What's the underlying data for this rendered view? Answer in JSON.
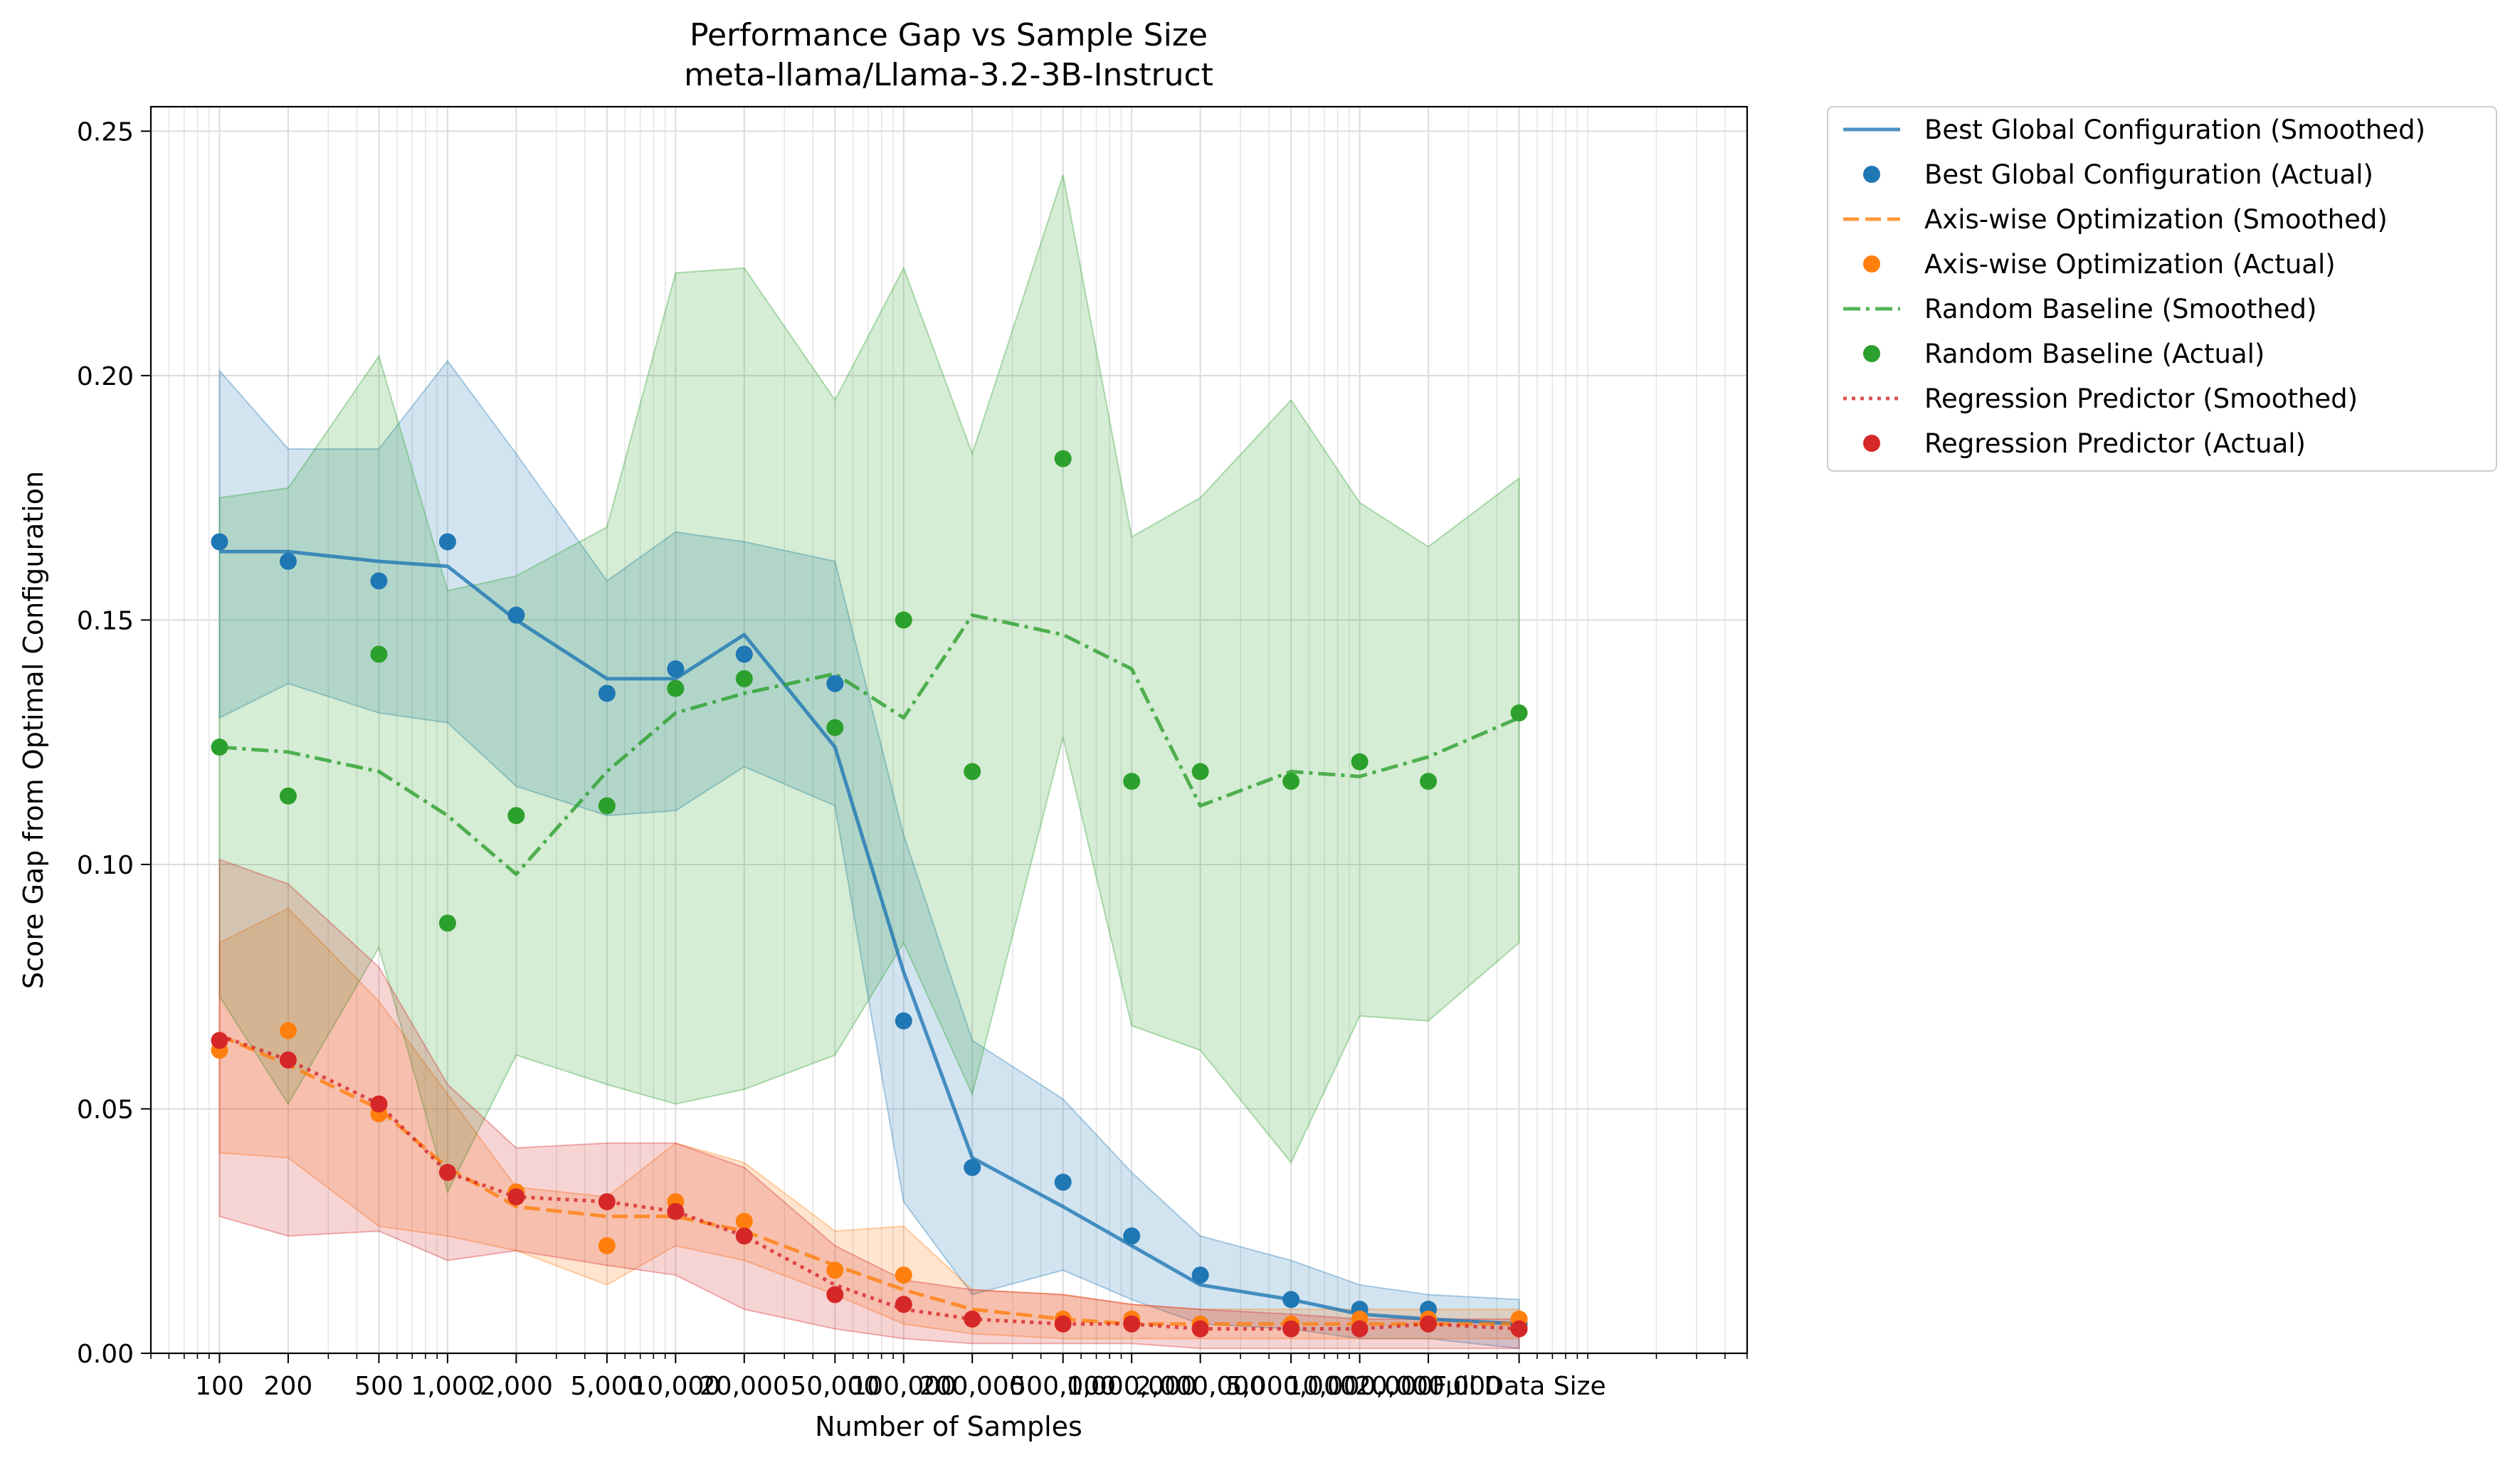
{
  "chart_data": {
    "type": "line",
    "title": "Performance Gap vs Sample Size",
    "subtitle": "meta-llama/Llama-3.2-3B-Instruct",
    "xlabel": "Number of Samples",
    "ylabel": "Score Gap from Optimal Configuration",
    "x_scale": "log",
    "ylim": [
      0.0,
      0.255
    ],
    "grid": true,
    "legend_placement": "outside-top-right",
    "categories": [
      "100",
      "200",
      "500",
      "1,000",
      "2,000",
      "5,000",
      "10,000",
      "20,000",
      "50,000",
      "100,000",
      "200,000",
      "500,000",
      "1,000,000",
      "2,000,000",
      "5,000,000",
      "10,000,000",
      "20,000,000",
      "Full Data Size"
    ],
    "y_ticks": [
      "0.00",
      "0.05",
      "0.10",
      "0.15",
      "0.20",
      "0.25"
    ],
    "series": [
      {
        "name": "Best Global Configuration",
        "smoothed_label": "Best Global Configuration (Smoothed)",
        "actual_label": "Best Global Configuration (Actual)",
        "color": "#1f77b4",
        "line_style": "solid",
        "smoothed": [
          0.164,
          0.164,
          0.162,
          0.161,
          0.15,
          0.138,
          0.138,
          0.147,
          0.124,
          0.078,
          0.04,
          0.03,
          0.022,
          0.014,
          0.011,
          0.008,
          0.007,
          0.006
        ],
        "actual": [
          0.166,
          0.162,
          0.158,
          0.166,
          0.151,
          0.135,
          0.14,
          0.143,
          0.137,
          0.068,
          0.038,
          0.035,
          0.024,
          0.016,
          0.011,
          0.009,
          0.009,
          0.006
        ],
        "band_upper": [
          0.201,
          0.185,
          0.185,
          0.203,
          0.184,
          0.158,
          0.168,
          0.166,
          0.162,
          0.106,
          0.064,
          0.052,
          0.037,
          0.024,
          0.019,
          0.014,
          0.012,
          0.011
        ],
        "band_lower": [
          0.13,
          0.137,
          0.131,
          0.129,
          0.116,
          0.11,
          0.111,
          0.12,
          0.112,
          0.031,
          0.012,
          0.017,
          0.011,
          0.006,
          0.005,
          0.003,
          0.003,
          0.001
        ]
      },
      {
        "name": "Axis-wise Optimization",
        "smoothed_label": "Axis-wise Optimization (Smoothed)",
        "actual_label": "Axis-wise Optimization (Actual)",
        "color": "#ff7f0e",
        "line_style": "dashed",
        "smoothed": [
          0.065,
          0.059,
          0.05,
          0.038,
          0.03,
          0.028,
          0.028,
          0.025,
          0.018,
          0.013,
          0.009,
          0.007,
          0.006,
          0.006,
          0.006,
          0.006,
          0.006,
          0.006
        ],
        "actual": [
          0.062,
          0.066,
          0.049,
          0.037,
          0.033,
          0.022,
          0.031,
          0.027,
          0.017,
          0.016,
          0.007,
          0.007,
          0.007,
          0.006,
          0.006,
          0.007,
          0.007,
          0.007
        ],
        "band_upper": [
          0.084,
          0.091,
          0.072,
          0.053,
          0.034,
          0.032,
          0.043,
          0.039,
          0.025,
          0.026,
          0.013,
          0.012,
          0.01,
          0.009,
          0.009,
          0.009,
          0.009,
          0.009
        ],
        "band_lower": [
          0.041,
          0.04,
          0.026,
          0.024,
          0.021,
          0.014,
          0.022,
          0.019,
          0.012,
          0.006,
          0.004,
          0.003,
          0.003,
          0.003,
          0.003,
          0.003,
          0.003,
          0.003
        ]
      },
      {
        "name": "Random Baseline",
        "smoothed_label": "Random Baseline (Smoothed)",
        "actual_label": "Random Baseline (Actual)",
        "color": "#2ca02c",
        "line_style": "dashdot",
        "smoothed": [
          0.124,
          0.123,
          0.119,
          0.11,
          0.098,
          0.119,
          0.131,
          0.135,
          0.139,
          0.13,
          0.151,
          0.147,
          0.14,
          0.112,
          0.119,
          0.118,
          0.122,
          0.13
        ],
        "actual": [
          0.124,
          0.114,
          0.143,
          0.088,
          0.11,
          0.112,
          0.136,
          0.138,
          0.128,
          0.15,
          0.119,
          0.183,
          0.117,
          0.119,
          0.117,
          0.121,
          0.117,
          0.131
        ],
        "band_upper": [
          0.175,
          0.177,
          0.204,
          0.156,
          0.159,
          0.169,
          0.221,
          0.222,
          0.195,
          0.222,
          0.184,
          0.241,
          0.167,
          0.175,
          0.195,
          0.174,
          0.165,
          0.179
        ],
        "band_lower": [
          0.073,
          0.051,
          0.083,
          0.033,
          0.061,
          0.055,
          0.051,
          0.054,
          0.061,
          0.084,
          0.053,
          0.126,
          0.067,
          0.062,
          0.039,
          0.069,
          0.068,
          0.084
        ]
      },
      {
        "name": "Regression Predictor",
        "smoothed_label": "Regression Predictor (Smoothed)",
        "actual_label": "Regression Predictor (Actual)",
        "color": "#d62728",
        "line_style": "dotted",
        "smoothed": [
          0.065,
          0.06,
          0.051,
          0.037,
          0.032,
          0.031,
          0.029,
          0.024,
          0.014,
          0.009,
          0.007,
          0.006,
          0.006,
          0.005,
          0.005,
          0.005,
          0.006,
          0.005
        ],
        "actual": [
          0.064,
          0.06,
          0.051,
          0.037,
          0.032,
          0.031,
          0.029,
          0.024,
          0.012,
          0.01,
          0.007,
          0.006,
          0.006,
          0.005,
          0.005,
          0.005,
          0.006,
          0.005
        ],
        "band_upper": [
          0.101,
          0.096,
          0.079,
          0.055,
          0.042,
          0.043,
          0.043,
          0.038,
          0.022,
          0.015,
          0.013,
          0.012,
          0.01,
          0.009,
          0.008,
          0.007,
          0.007,
          0.007
        ],
        "band_lower": [
          0.028,
          0.024,
          0.025,
          0.019,
          0.021,
          0.018,
          0.016,
          0.009,
          0.005,
          0.003,
          0.002,
          0.002,
          0.002,
          0.001,
          0.001,
          0.001,
          0.001,
          0.001
        ]
      }
    ]
  }
}
